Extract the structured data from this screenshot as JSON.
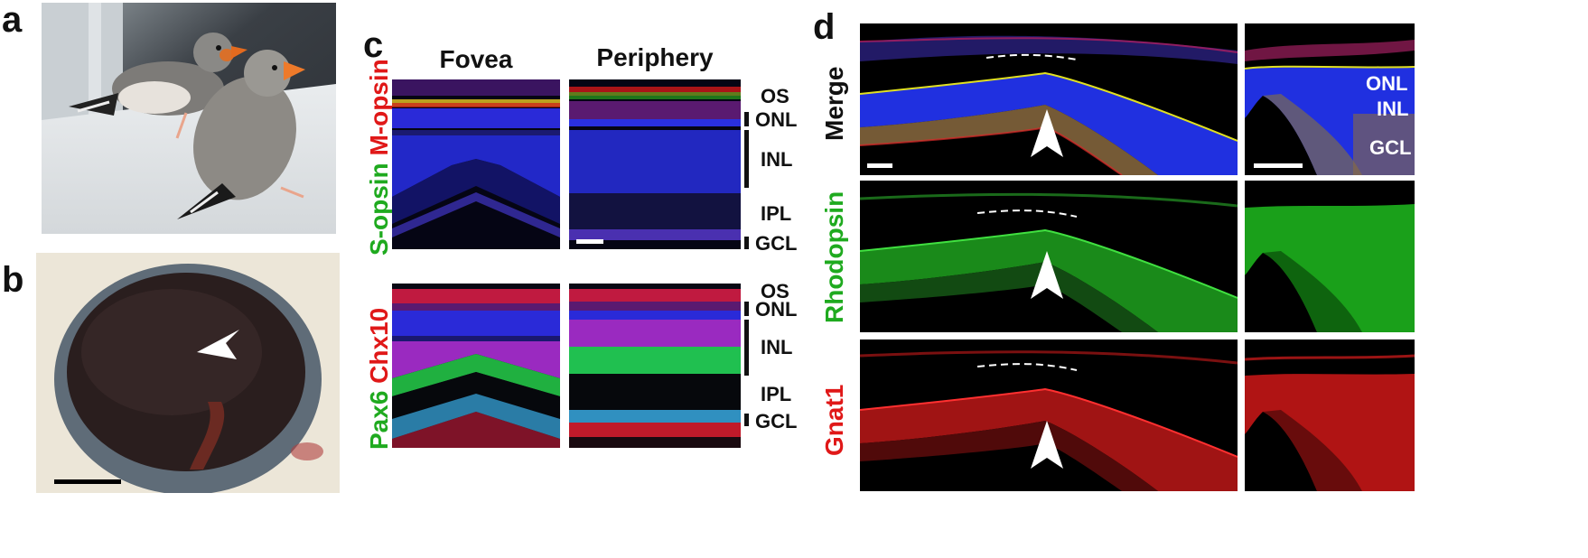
{
  "panels": {
    "a": {
      "label": "a"
    },
    "b": {
      "label": "b"
    },
    "c": {
      "label": "c",
      "columns": [
        "Fovea",
        "Periphery"
      ],
      "rows": [
        {
          "stain_green": "S-opsin",
          "stain_red": "M-opsin",
          "layers": [
            "OS",
            "ONL",
            "INL",
            "IPL",
            "GCL"
          ]
        },
        {
          "stain_green": "Pax6",
          "stain_red": "Chx10",
          "layers": [
            "OS",
            "ONL",
            "INL",
            "IPL",
            "GCL"
          ]
        }
      ]
    },
    "d": {
      "label": "d",
      "rows": [
        {
          "label": "Merge",
          "color": "#111111"
        },
        {
          "label": "Rhodopsin",
          "color": "#1faa1f"
        },
        {
          "label": "Gnat1",
          "color": "#e01818"
        }
      ],
      "inset_layers": [
        "ONL",
        "INL",
        "GCL"
      ]
    }
  },
  "colors": {
    "green": "#1faa1f",
    "red": "#e01818",
    "dapi": "#1e2ad8"
  }
}
